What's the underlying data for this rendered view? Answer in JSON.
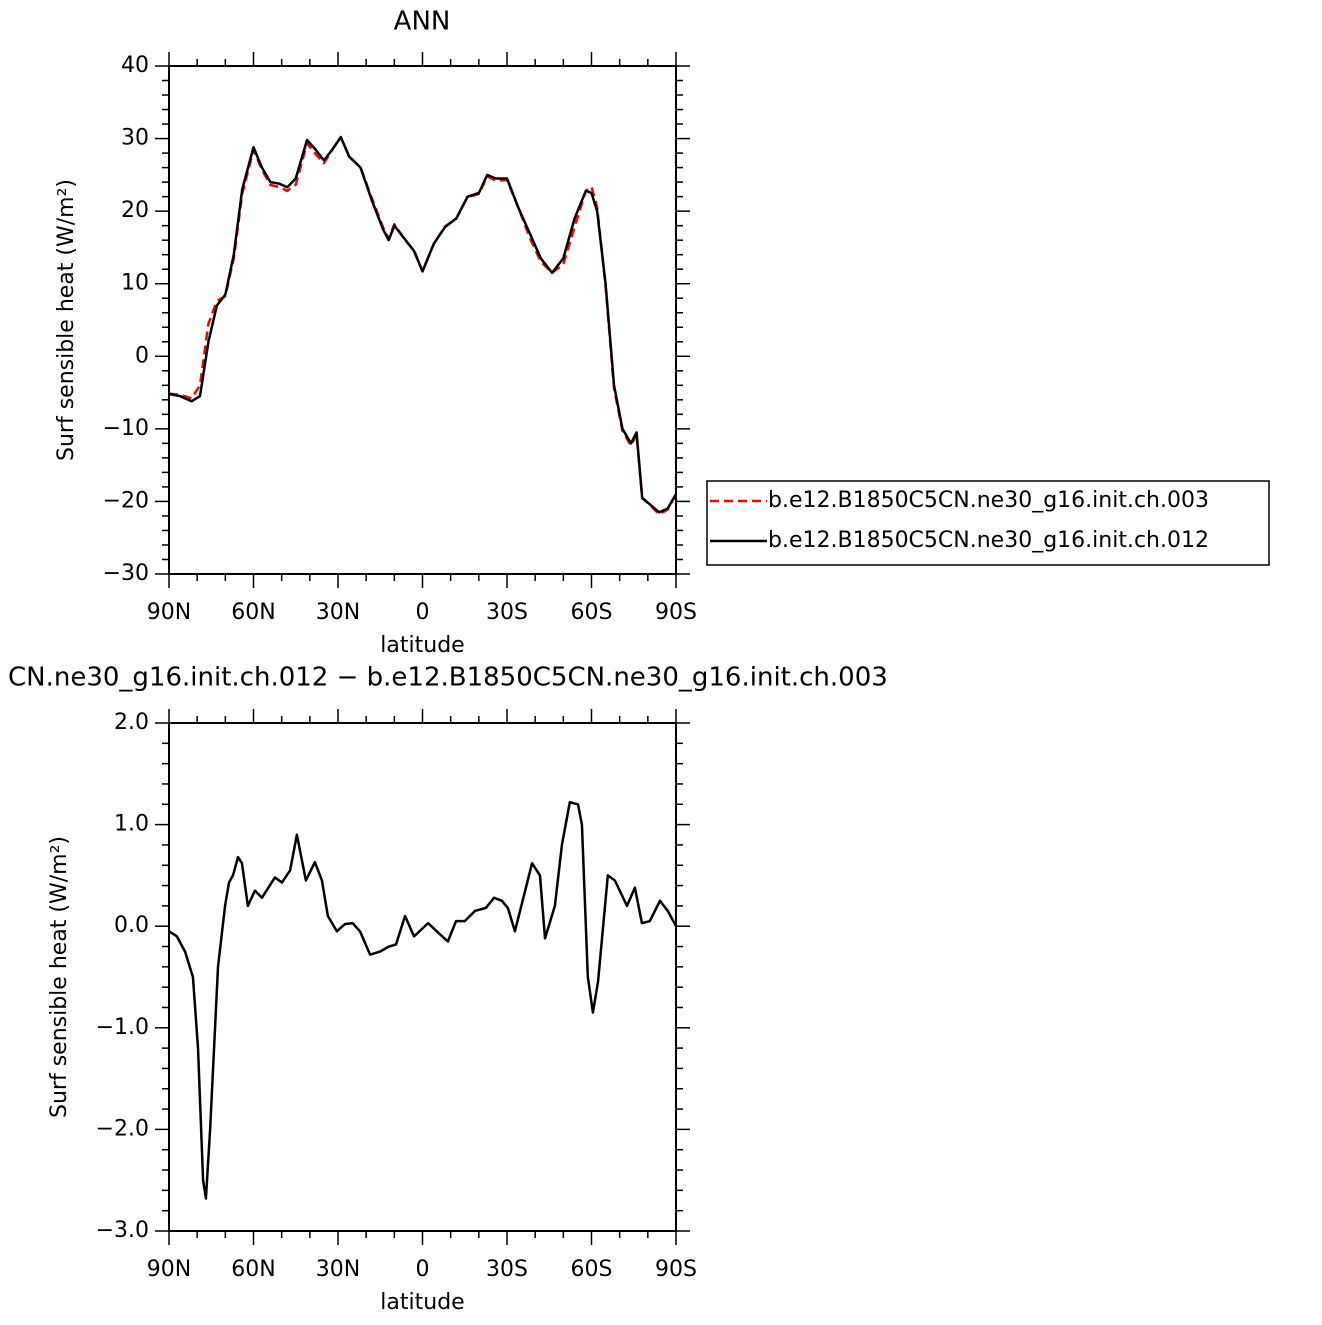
{
  "chart_data": [
    {
      "type": "line",
      "title": "ANN",
      "xlabel": "latitude",
      "ylabel": "Surf sensible heat (W/m²)",
      "xlim": [
        90,
        -90
      ],
      "xticks": [
        {
          "value": 90,
          "label": "90N"
        },
        {
          "value": 60,
          "label": "60N"
        },
        {
          "value": 30,
          "label": "30N"
        },
        0,
        {
          "value": -30,
          "label": "30S"
        },
        {
          "value": -60,
          "label": "60S"
        },
        {
          "value": -90,
          "label": "90S"
        }
      ],
      "ylim": [
        -30,
        40
      ],
      "yticks": [
        {
          "value": -30,
          "label": "−30"
        },
        {
          "value": -20,
          "label": "−20"
        },
        {
          "value": -10,
          "label": "−10"
        },
        0,
        10,
        20,
        30,
        40
      ],
      "legend": "right",
      "x": [
        90,
        86,
        82,
        79,
        76,
        73,
        70,
        67,
        64,
        60,
        57,
        54,
        51,
        48,
        45,
        41,
        38,
        35,
        32,
        29,
        26,
        22,
        18,
        14,
        12,
        10,
        6,
        3,
        0,
        -4,
        -8,
        -12,
        -16,
        -20,
        -23,
        -26,
        -30,
        -34,
        -38,
        -42,
        -46,
        -50,
        -54,
        -58,
        -60,
        -62,
        -65,
        -68,
        -71,
        -74,
        -76,
        -78,
        -81,
        -84,
        -87,
        -90
      ],
      "series": [
        {
          "name": "b.e12.B1850C5CN.ne30_g16.init.ch.003",
          "color": "#ff0000",
          "dashed": true,
          "values": [
            -5.15,
            -5.3,
            -5.8,
            -4,
            4.5,
            7.6,
            8.3,
            13.5,
            22.4,
            28.45,
            25.7,
            23.6,
            23.35,
            22.8,
            23.65,
            29.35,
            27.9,
            26.6,
            28.5,
            30.2,
            27.5,
            26.05,
            21.8,
            17.75,
            16.2,
            18.2,
            15.9,
            14.6,
            11.7,
            15.5,
            17.9,
            18.95,
            21.95,
            22.35,
            24.8,
            24.2,
            24.3,
            20.5,
            16.4,
            13.05,
            11.5,
            12.7,
            17.8,
            22.8,
            23.35,
            20.55,
            9.6,
            -4.45,
            -10.3,
            -12.3,
            -10.85,
            -19.53,
            -20.6,
            -21.75,
            -21.15,
            -19
          ]
        },
        {
          "name": "b.e12.B1850C5CN.ne30_g16.init.ch.012",
          "color": "#000000",
          "dashed": false,
          "values": [
            -5.2,
            -5.5,
            -6.2,
            -5.5,
            2,
            7,
            8.5,
            14,
            23,
            28.8,
            26,
            24,
            23.8,
            23.3,
            24.5,
            29.8,
            28.5,
            27,
            28.5,
            30.2,
            27.5,
            26,
            21.5,
            17.5,
            16,
            18,
            16,
            14.5,
            11.7,
            15.5,
            17.8,
            19,
            22,
            22.5,
            25,
            24.5,
            24.5,
            20.5,
            17,
            13.5,
            11.5,
            13.5,
            19,
            22.8,
            22.5,
            20,
            10,
            -4,
            -10,
            -12,
            -10.5,
            -19.5,
            -20.5,
            -21.5,
            -21,
            -19
          ]
        }
      ]
    },
    {
      "type": "line",
      "title": "CN.ne30_g16.init.ch.012 − b.e12.B1850C5CN.ne30_g16.init.ch.003",
      "xlabel": "latitude",
      "ylabel": "Surf sensible heat (W/m²)",
      "xlim": [
        90,
        -90
      ],
      "xticks": [
        {
          "value": 90,
          "label": "90N"
        },
        {
          "value": 60,
          "label": "60N"
        },
        {
          "value": 30,
          "label": "30N"
        },
        0,
        {
          "value": -30,
          "label": "30S"
        },
        {
          "value": -60,
          "label": "60S"
        },
        {
          "value": -90,
          "label": "90S"
        }
      ],
      "ylim": [
        -3,
        2
      ],
      "yticks": [
        {
          "value": -3,
          "label": "−3.0"
        },
        {
          "value": -2,
          "label": "−2.0"
        },
        {
          "value": -1,
          "label": "−1.0"
        },
        {
          "value": 0,
          "label": "0.0"
        },
        {
          "value": 1,
          "label": "1.0"
        },
        {
          "value": 2,
          "label": "2.0"
        }
      ],
      "x": [
        90,
        87.2,
        84.3,
        81.5,
        79.7,
        77.9,
        76.9,
        75.4,
        72.6,
        70.1,
        68.7,
        67.3,
        65.5,
        64.1,
        62,
        59.5,
        57,
        52.4,
        49.9,
        47,
        44.6,
        41.4,
        38.2,
        35.7,
        33.6,
        30.4,
        27.6,
        24.8,
        22.2,
        18.6,
        15.1,
        11.9,
        9.4,
        6.2,
        3,
        -2,
        -6.2,
        -9,
        -11.9,
        -15,
        -18.6,
        -22.5,
        -25.4,
        -28.2,
        -30.3,
        -32.8,
        -36,
        -38.9,
        -41.7,
        -43.5,
        -47,
        -49.5,
        -52.3,
        -55.2,
        -56.6,
        -58.7,
        -60.5,
        -62.3,
        -65.8,
        -68.3,
        -72.6,
        -75.4,
        -77.9,
        -80.7,
        -84.3,
        -87.1,
        -90
      ],
      "series": [
        {
          "color": "#000000",
          "dashed": false,
          "values": [
            -0.05,
            -0.1,
            -0.25,
            -0.5,
            -1.2,
            -2.5,
            -2.68,
            -2,
            -0.4,
            0.2,
            0.43,
            0.5,
            0.68,
            0.62,
            0.2,
            0.35,
            0.28,
            0.48,
            0.43,
            0.55,
            0.9,
            0.45,
            0.63,
            0.45,
            0.1,
            -0.05,
            0.02,
            0.03,
            -0.05,
            -0.28,
            -0.25,
            -0.2,
            -0.18,
            0.1,
            -0.1,
            0.03,
            -0.08,
            -0.15,
            0.05,
            0.05,
            0.15,
            0.18,
            0.28,
            0.25,
            0.18,
            -0.05,
            0.3,
            0.62,
            0.5,
            -0.12,
            0.2,
            0.8,
            1.22,
            1.2,
            1,
            -0.5,
            -0.85,
            -0.55,
            0.5,
            0.45,
            0.2,
            0.38,
            0.03,
            0.05,
            0.25,
            0.15,
            0
          ]
        }
      ]
    }
  ]
}
